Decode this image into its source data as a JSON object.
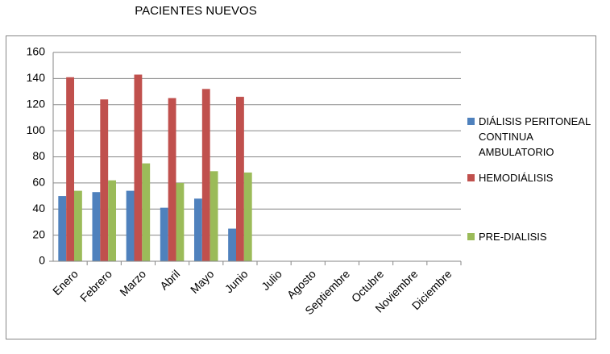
{
  "chart_data": {
    "type": "bar",
    "title": "PACIENTES NUEVOS",
    "categories": [
      "Enero",
      "Febrero",
      "Marzo",
      "Abril",
      "Mayo",
      "Junio",
      "Julio",
      "Agosto",
      "Septiembre",
      "Octubre",
      "Noviembre",
      "Diciembre"
    ],
    "series": [
      {
        "name": "DIÁLISIS PERITONEAL CONTINUA AMBULATORIO",
        "color": "#4f81bd",
        "values": [
          50,
          53,
          54,
          41,
          48,
          25,
          null,
          null,
          null,
          null,
          null,
          null
        ]
      },
      {
        "name": "HEMODIÁLISIS",
        "color": "#c0504d",
        "values": [
          141,
          124,
          143,
          125,
          132,
          126,
          null,
          null,
          null,
          null,
          null,
          null
        ]
      },
      {
        "name": "PRE-DIALISIS",
        "color": "#9bbb59",
        "values": [
          54,
          62,
          75,
          60,
          69,
          68,
          null,
          null,
          null,
          null,
          null,
          null
        ]
      }
    ],
    "ylim": [
      0,
      160
    ],
    "yticks": [
      0,
      20,
      40,
      60,
      80,
      100,
      120,
      140,
      160
    ],
    "grid": true,
    "legend": "right"
  }
}
